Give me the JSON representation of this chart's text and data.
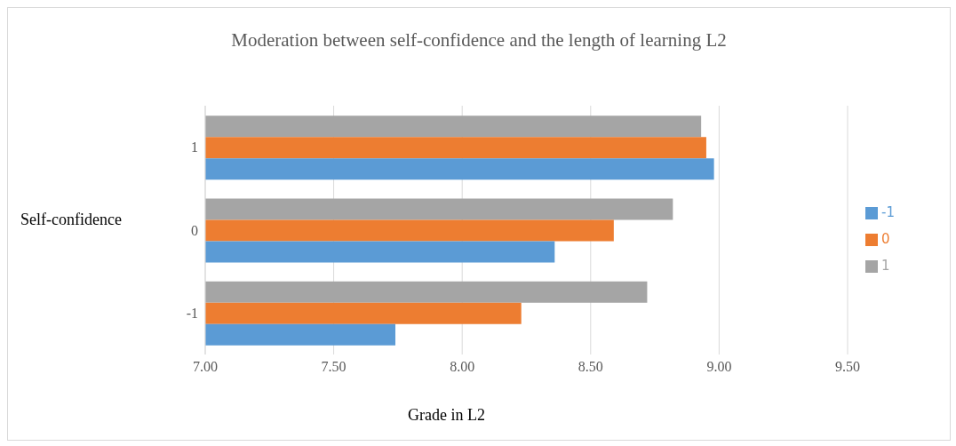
{
  "chart_data": {
    "type": "bar",
    "orientation": "horizontal",
    "title": "Moderation between self-confidence and the length of learning L2",
    "xlabel": "Grade in L2",
    "ylabel": "Self-confidence",
    "categories": [
      "1",
      "0",
      "-1"
    ],
    "series": [
      {
        "name": "1",
        "color": "#a5a5a5",
        "values": [
          8.93,
          8.82,
          8.72
        ]
      },
      {
        "name": "0",
        "color": "#ed7d31",
        "values": [
          8.95,
          8.59,
          8.23
        ]
      },
      {
        "name": "-1",
        "color": "#5b9bd5",
        "values": [
          8.98,
          8.36,
          7.74
        ]
      }
    ],
    "xlim": [
      7,
      9.5
    ],
    "xticks": [
      {
        "value": 7,
        "label": "7.00"
      },
      {
        "value": 7.5,
        "label": "7.50"
      },
      {
        "value": 8,
        "label": "8.00"
      },
      {
        "value": 8.5,
        "label": "8.50"
      },
      {
        "value": 9,
        "label": "9.00"
      },
      {
        "value": 9.5,
        "label": "9.50"
      }
    ],
    "grid": "x",
    "legend": "right"
  }
}
